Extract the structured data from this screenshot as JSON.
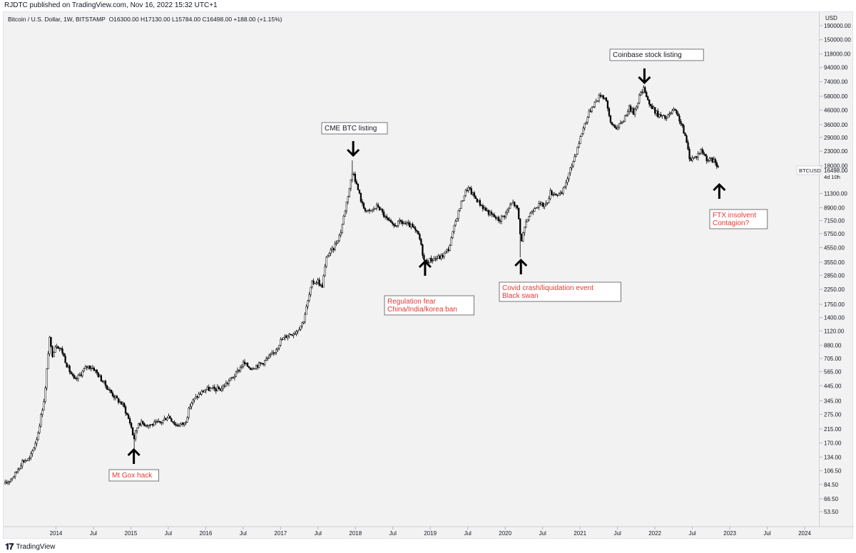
{
  "header": {
    "published_line": "RJDTC published on TradingView.com, Nov 16, 2022 15:32 UTC+1"
  },
  "footer": {
    "logo_mark": "𝟏𝟕",
    "brand": "TradingView"
  },
  "colors": {
    "plot_bg": "#f2f2f2",
    "candle": "#000000",
    "annotation_red": "#e53935",
    "annotation_black": "#131722",
    "label_bg": "#ffffff",
    "label_border": "#555555"
  },
  "chart_data": {
    "type": "candlestick",
    "title": "Bitcoin / U.S. Dollar, 1W, BITSTAMP",
    "ohlc_readout": "O16300.00 H17130.00 L15784.00 C16498.00 +188.00 (+1.15%)",
    "currency": "USD",
    "y_scale": "log",
    "ylim": [
      42,
      230000
    ],
    "y_ticks": [
      190000,
      150000,
      118000,
      94000,
      74000,
      58000,
      46000,
      36000,
      29000,
      23000,
      18000,
      11300,
      8900,
      7150,
      5750,
      4550,
      3550,
      2850,
      2250,
      1750,
      1400,
      1120,
      880,
      705,
      565,
      445,
      345,
      275,
      215,
      170,
      134,
      106.5,
      84.5,
      66.5,
      53.5
    ],
    "y_tick_labels": [
      "190000.00",
      "150000.00",
      "118000.00",
      "94000.00",
      "74000.00",
      "58000.00",
      "46000.00",
      "36000.00",
      "29000.00",
      "23000.00",
      "18000.00",
      "11300.00",
      "8900.00",
      "7150.00",
      "5750.00",
      "4550.00",
      "3550.00",
      "2850.00",
      "2250.00",
      "1750.00",
      "1400.00",
      "1120.00",
      "880.00",
      "705.00",
      "565.00",
      "445.00",
      "345.00",
      "275.00",
      "215.00",
      "170.00",
      "134.00",
      "106.50",
      "84.50",
      "66.50",
      "53.50"
    ],
    "xlim": [
      2013.3,
      2024.2
    ],
    "x_ticks": [
      {
        "t": 2014.0,
        "label": "2014"
      },
      {
        "t": 2014.5,
        "label": "Jul"
      },
      {
        "t": 2015.0,
        "label": "2015"
      },
      {
        "t": 2015.5,
        "label": "Jul"
      },
      {
        "t": 2016.0,
        "label": "2016"
      },
      {
        "t": 2016.5,
        "label": "Jul"
      },
      {
        "t": 2017.0,
        "label": "2017"
      },
      {
        "t": 2017.5,
        "label": "Jul"
      },
      {
        "t": 2018.0,
        "label": "2018"
      },
      {
        "t": 2018.5,
        "label": "Jul"
      },
      {
        "t": 2019.0,
        "label": "2019"
      },
      {
        "t": 2019.5,
        "label": "Jul"
      },
      {
        "t": 2020.0,
        "label": "2020"
      },
      {
        "t": 2020.5,
        "label": "Jul"
      },
      {
        "t": 2021.0,
        "label": "2021"
      },
      {
        "t": 2021.5,
        "label": "Jul"
      },
      {
        "t": 2022.0,
        "label": "2022"
      },
      {
        "t": 2022.5,
        "label": "Jul"
      },
      {
        "t": 2023.0,
        "label": "2023"
      },
      {
        "t": 2023.5,
        "label": "Jul"
      },
      {
        "t": 2024.0,
        "label": "2024"
      }
    ],
    "price_path": [
      [
        2013.32,
        85
      ],
      [
        2013.45,
        100
      ],
      [
        2013.55,
        125
      ],
      [
        2013.65,
        130
      ],
      [
        2013.75,
        190
      ],
      [
        2013.85,
        380
      ],
      [
        2013.91,
        1000
      ],
      [
        2013.95,
        750
      ],
      [
        2014.0,
        900
      ],
      [
        2014.08,
        800
      ],
      [
        2014.15,
        620
      ],
      [
        2014.25,
        480
      ],
      [
        2014.35,
        560
      ],
      [
        2014.42,
        620
      ],
      [
        2014.5,
        600
      ],
      [
        2014.6,
        500
      ],
      [
        2014.7,
        420
      ],
      [
        2014.8,
        360
      ],
      [
        2014.9,
        320
      ],
      [
        2015.0,
        230
      ],
      [
        2015.04,
        180
      ],
      [
        2015.1,
        240
      ],
      [
        2015.25,
        230
      ],
      [
        2015.4,
        240
      ],
      [
        2015.5,
        270
      ],
      [
        2015.6,
        230
      ],
      [
        2015.72,
        235
      ],
      [
        2015.8,
        330
      ],
      [
        2015.9,
        380
      ],
      [
        2016.0,
        420
      ],
      [
        2016.2,
        420
      ],
      [
        2016.4,
        540
      ],
      [
        2016.5,
        650
      ],
      [
        2016.6,
        600
      ],
      [
        2016.75,
        650
      ],
      [
        2016.9,
        760
      ],
      [
        2017.0,
        950
      ],
      [
        2017.1,
        1050
      ],
      [
        2017.2,
        1100
      ],
      [
        2017.3,
        1300
      ],
      [
        2017.42,
        2500
      ],
      [
        2017.5,
        2600
      ],
      [
        2017.55,
        2300
      ],
      [
        2017.62,
        4000
      ],
      [
        2017.7,
        4400
      ],
      [
        2017.8,
        5800
      ],
      [
        2017.9,
        11000
      ],
      [
        2017.97,
        17000
      ],
      [
        2018.0,
        14000
      ],
      [
        2018.1,
        9000
      ],
      [
        2018.18,
        8200
      ],
      [
        2018.3,
        9200
      ],
      [
        2018.4,
        7500
      ],
      [
        2018.5,
        6500
      ],
      [
        2018.6,
        7000
      ],
      [
        2018.75,
        6500
      ],
      [
        2018.85,
        5500
      ],
      [
        2018.92,
        3600
      ],
      [
        2019.0,
        3700
      ],
      [
        2019.15,
        3900
      ],
      [
        2019.25,
        4500
      ],
      [
        2019.35,
        7500
      ],
      [
        2019.45,
        11000
      ],
      [
        2019.5,
        12500
      ],
      [
        2019.6,
        10500
      ],
      [
        2019.7,
        9000
      ],
      [
        2019.8,
        8000
      ],
      [
        2019.92,
        7200
      ],
      [
        2020.0,
        8000
      ],
      [
        2020.1,
        9800
      ],
      [
        2020.17,
        8500
      ],
      [
        2020.21,
        5000
      ],
      [
        2020.3,
        7500
      ],
      [
        2020.4,
        9200
      ],
      [
        2020.55,
        9400
      ],
      [
        2020.6,
        11500
      ],
      [
        2020.75,
        11000
      ],
      [
        2020.85,
        15500
      ],
      [
        2020.95,
        23000
      ],
      [
        2021.05,
        35000
      ],
      [
        2021.15,
        48000
      ],
      [
        2021.28,
        60000
      ],
      [
        2021.35,
        55000
      ],
      [
        2021.4,
        37000
      ],
      [
        2021.5,
        34000
      ],
      [
        2021.58,
        39000
      ],
      [
        2021.65,
        48000
      ],
      [
        2021.72,
        44000
      ],
      [
        2021.8,
        60000
      ],
      [
        2021.86,
        66000
      ],
      [
        2021.93,
        50000
      ],
      [
        2022.05,
        42000
      ],
      [
        2022.15,
        40000
      ],
      [
        2022.25,
        46000
      ],
      [
        2022.33,
        39000
      ],
      [
        2022.4,
        30000
      ],
      [
        2022.47,
        20000
      ],
      [
        2022.55,
        21000
      ],
      [
        2022.62,
        23500
      ],
      [
        2022.7,
        20000
      ],
      [
        2022.8,
        19500
      ],
      [
        2022.86,
        16500
      ]
    ],
    "wick_extremes": [
      {
        "t": 2015.04,
        "low": 152
      },
      {
        "t": 2017.96,
        "high": 19700
      },
      {
        "t": 2018.93,
        "low": 3150
      },
      {
        "t": 2020.2,
        "low": 3850
      },
      {
        "t": 2021.86,
        "high": 69000
      },
      {
        "t": 2022.86,
        "low": 15784
      }
    ],
    "last_price": {
      "symbol": "BTCUSD",
      "price": "16498.00",
      "countdown": "4d 10h"
    },
    "annotations": [
      {
        "text": [
          "Mt Gox hack"
        ],
        "arrow": "up",
        "color": "red",
        "t": 2015.04
      },
      {
        "text": [
          "CME BTC listing"
        ],
        "arrow": "down",
        "color": "black",
        "t": 2017.97
      },
      {
        "text": [
          "Regulation fear",
          "China/India/korea ban"
        ],
        "arrow": "up",
        "color": "red",
        "t": 2018.93
      },
      {
        "text": [
          "Covid crash/liquidation event",
          "Black swan"
        ],
        "arrow": "up",
        "color": "red",
        "t": 2020.21
      },
      {
        "text": [
          "Coinbase stock listing"
        ],
        "arrow": "down",
        "color": "black",
        "t": 2021.86
      },
      {
        "text": [
          "FTX insolvent",
          "Contagion?"
        ],
        "arrow": "up",
        "color": "red",
        "t": 2022.86
      }
    ]
  }
}
